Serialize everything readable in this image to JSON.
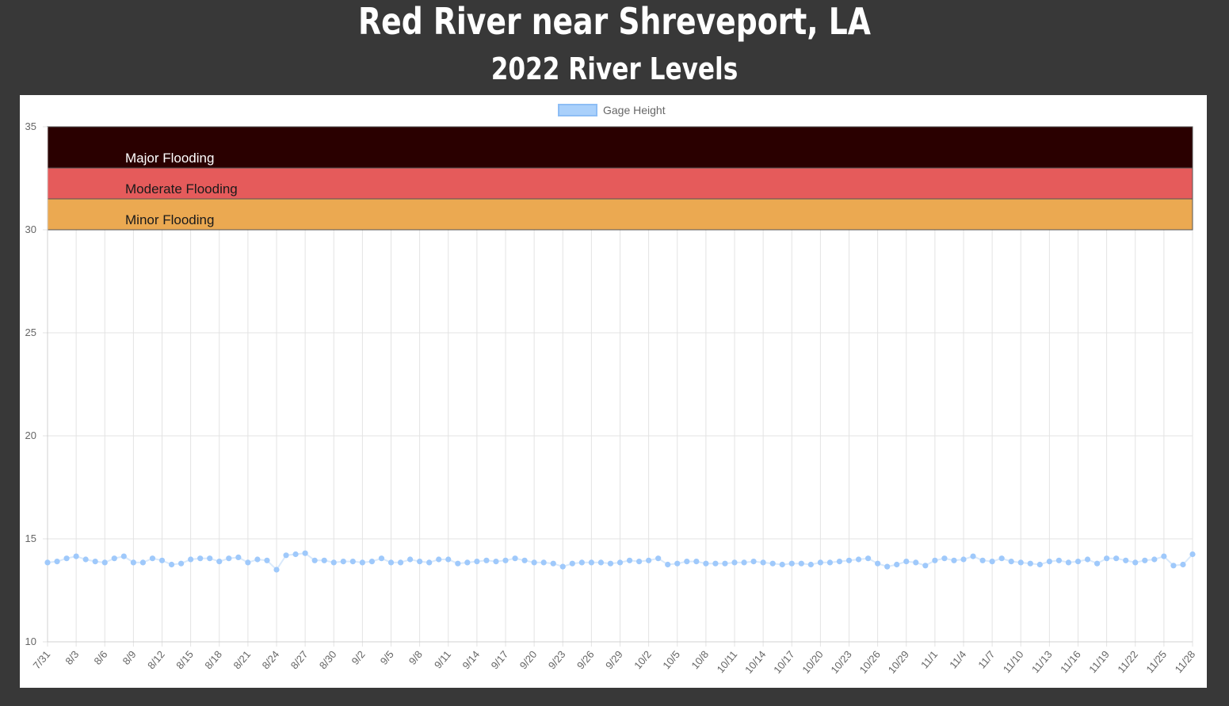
{
  "page": {
    "title": "Red River near Shreveport, LA",
    "subtitle": "2022 River Levels"
  },
  "chart_data": {
    "type": "line",
    "legend": {
      "label": "Gage Height",
      "placement": "top-center"
    },
    "ylim": [
      10,
      35
    ],
    "yticks": [
      10,
      15,
      20,
      25,
      30,
      35
    ],
    "grid": true,
    "x_tick_labels": [
      "7/31",
      "8/3",
      "8/6",
      "8/9",
      "8/12",
      "8/15",
      "8/18",
      "8/21",
      "8/24",
      "8/27",
      "8/30",
      "9/2",
      "9/5",
      "9/8",
      "9/11",
      "9/14",
      "9/17",
      "9/20",
      "9/23",
      "9/26",
      "9/29",
      "10/2",
      "10/5",
      "10/8",
      "10/11",
      "10/14",
      "10/17",
      "10/20",
      "10/23",
      "10/26",
      "10/29",
      "11/1",
      "11/4",
      "11/7",
      "11/10",
      "11/13",
      "11/16",
      "11/19",
      "11/22",
      "11/25",
      "11/28"
    ],
    "bands": [
      {
        "label": "Major Flooding",
        "from": 33,
        "to": 35,
        "color": "#2a0000",
        "text_color": "#ffffff"
      },
      {
        "label": "Moderate Flooding",
        "from": 31.5,
        "to": 33,
        "color": "#e55b5b",
        "text_color": "#1a1a1a"
      },
      {
        "label": "Minor Flooding",
        "from": 30,
        "to": 31.5,
        "color": "#eba951",
        "text_color": "#1a1a1a"
      }
    ],
    "series": [
      {
        "name": "Gage Height",
        "color": "#9fc9fb",
        "x_start": "7/31",
        "x_step_days": 1,
        "values": [
          13.85,
          13.9,
          14.05,
          14.15,
          14.0,
          13.9,
          13.85,
          14.05,
          14.15,
          13.85,
          13.85,
          14.05,
          13.95,
          13.75,
          13.8,
          14.0,
          14.05,
          14.05,
          13.9,
          14.05,
          14.1,
          13.85,
          14.0,
          13.95,
          13.5,
          14.2,
          14.25,
          14.3,
          13.95,
          13.95,
          13.85,
          13.9,
          13.9,
          13.85,
          13.9,
          14.05,
          13.85,
          13.85,
          14.0,
          13.9,
          13.85,
          14.0,
          14.0,
          13.8,
          13.85,
          13.9,
          13.95,
          13.9,
          13.95,
          14.05,
          13.95,
          13.85,
          13.85,
          13.8,
          13.65,
          13.8,
          13.85,
          13.85,
          13.85,
          13.8,
          13.85,
          13.95,
          13.9,
          13.95,
          14.05,
          13.75,
          13.8,
          13.9,
          13.9,
          13.8,
          13.8,
          13.8,
          13.85,
          13.85,
          13.9,
          13.85,
          13.8,
          13.75,
          13.8,
          13.8,
          13.75,
          13.85,
          13.85,
          13.9,
          13.95,
          14.0,
          14.05,
          13.8,
          13.65,
          13.75,
          13.9,
          13.85,
          13.7,
          13.95,
          14.05,
          13.95,
          14.0,
          14.15,
          13.95,
          13.9,
          14.05,
          13.9,
          13.85,
          13.8,
          13.75,
          13.9,
          13.95,
          13.85,
          13.9,
          14.0,
          13.8,
          14.05,
          14.05,
          13.95,
          13.85,
          13.95,
          14.0,
          14.15,
          13.7,
          13.75,
          14.25
        ]
      }
    ]
  }
}
